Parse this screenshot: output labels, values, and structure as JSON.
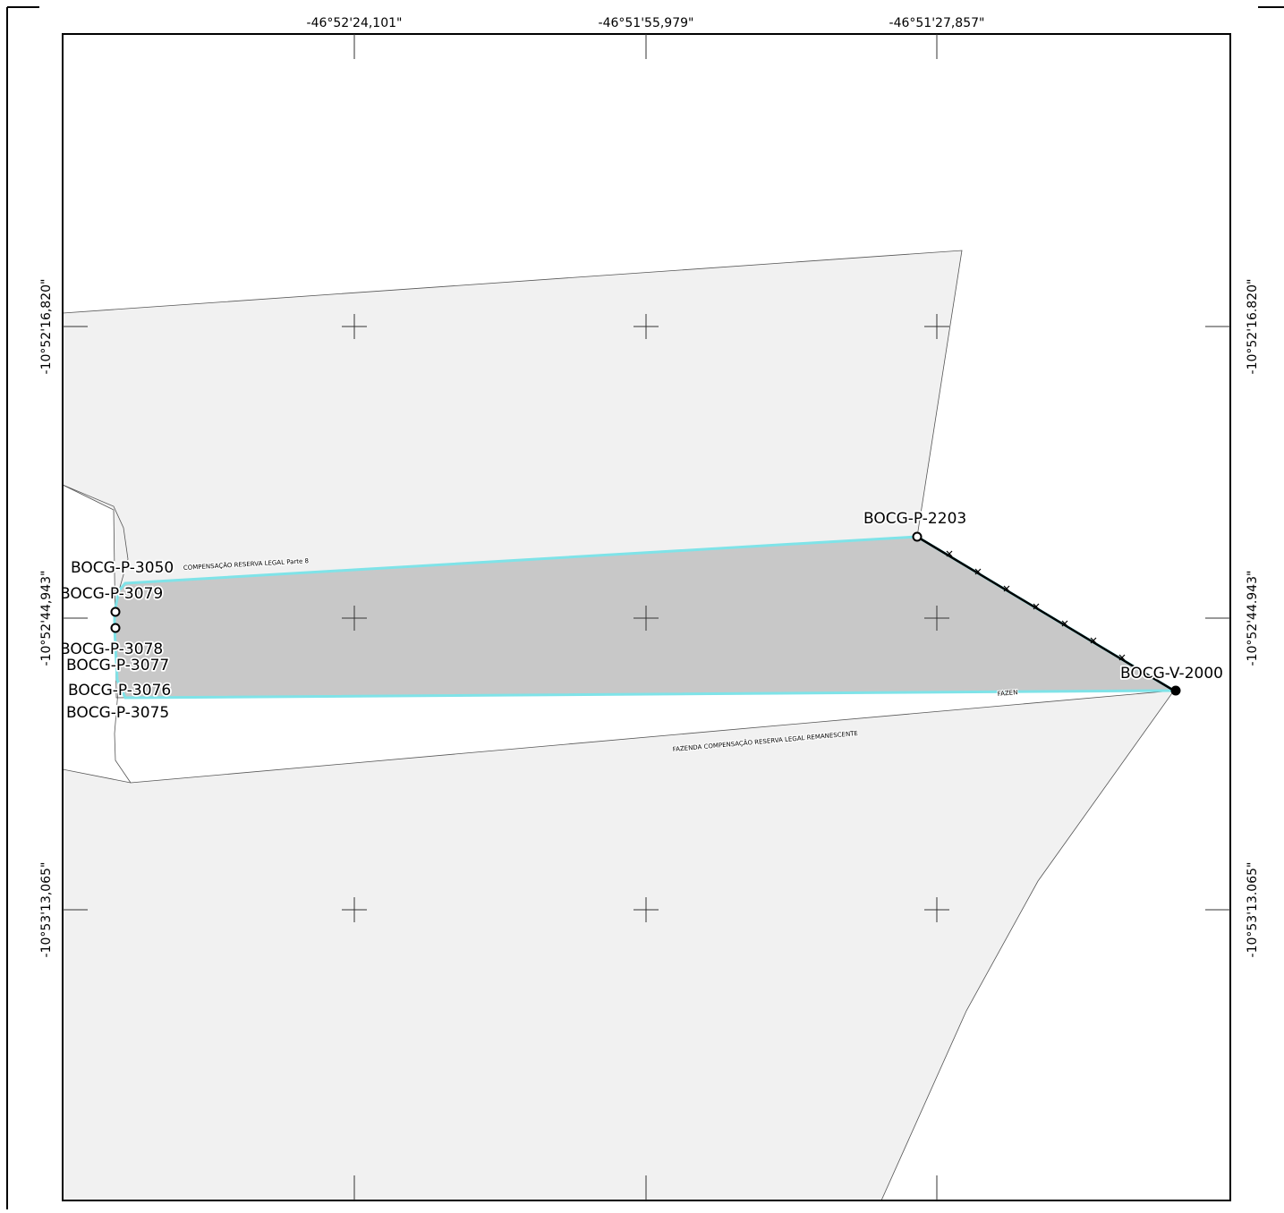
{
  "map": {
    "top_coords": [
      "-46°52'24,101\"",
      "-46°51'55,979\"",
      "-46°51'27,857\""
    ],
    "left_coords": [
      "-10°52'16,820\"",
      "-10°52'44,943\"",
      "-10°53'13,065\""
    ],
    "right_coords": [
      "-10°52'16.820\"",
      "-10°52'44.943\"",
      "-10°53'13.065\""
    ],
    "vertex_labels": [
      "BOCG-P-3050",
      "BOCG-P-3079",
      "BOCG-P-3078",
      "BOCG-P-3077",
      "BOCG-P-3076",
      "BOCG-P-3075",
      "BOCG-P-2203",
      "BOCG-V-2000"
    ],
    "parcel_labels": {
      "upper": "COMPENSAÇÃO RESERVA LEGAL Parte 8",
      "lower": "FAZENDA COMPENSAÇÃO RESERVA LEGAL REMANESCENTE",
      "clipped": "FAZEN"
    },
    "colors": {
      "background": "#ffffff",
      "parcel_fill": "#f1f1f1",
      "selected_fill": "#c8c8c8",
      "selected_outline": "#7fe3e8",
      "boundary_line": "#000000"
    }
  }
}
